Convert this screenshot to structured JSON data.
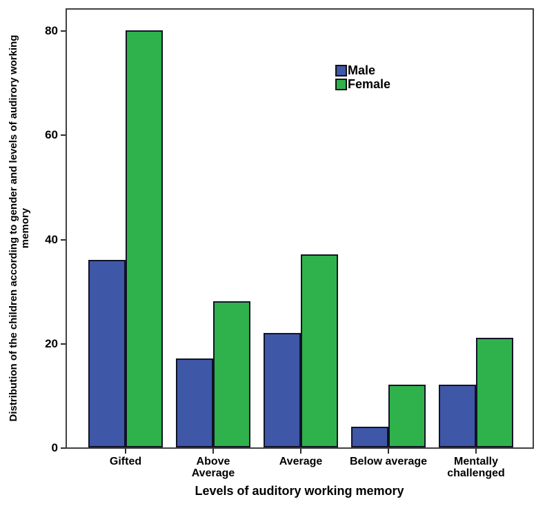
{
  "chart_data": {
    "type": "bar",
    "title": "",
    "xlabel": "Levels of auditory working memory",
    "ylabel": "Distribution of the children according to gender and levels of audirory working memory",
    "ylabel_lines": [
      "Distribution of the children according to gender and levels of audirory working",
      "memory"
    ],
    "categories": [
      "Gifted",
      "Above\nAverage",
      "Average",
      "Below average",
      "Mentally\nchallenged"
    ],
    "series": [
      {
        "name": "Male",
        "color": "#3E57A7",
        "values": [
          36,
          17,
          22,
          4,
          12
        ]
      },
      {
        "name": "Female",
        "color": "#2FB24B",
        "values": [
          80,
          28,
          37,
          12,
          21
        ]
      }
    ],
    "yticks": [
      0,
      20,
      40,
      60,
      80
    ],
    "ylim": [
      0,
      84
    ],
    "grid": false,
    "legend": {
      "position": "inside-top-center-right",
      "items": [
        "Male",
        "Female"
      ]
    },
    "colors": {
      "bar_border": "#121226",
      "frame": "#3f3f3f",
      "tick": "#2b2b2b",
      "text": "#000000",
      "background": "#ffffff"
    }
  }
}
